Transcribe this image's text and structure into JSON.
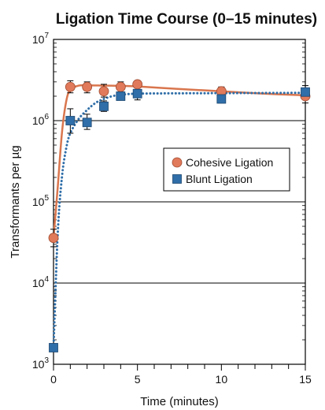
{
  "chart_data": {
    "type": "scatter",
    "title": "Ligation Time Course (0–15 minutes)",
    "xlabel": "Time (minutes)",
    "ylabel": "Transformants per µg",
    "y_scale": "log",
    "xlim": [
      0,
      15
    ],
    "ylim": [
      1000,
      10000000
    ],
    "x_ticks": [
      0,
      5,
      10,
      15
    ],
    "y_ticks": [
      {
        "value": 1000,
        "base": "10",
        "exp": "3"
      },
      {
        "value": 10000,
        "base": "10",
        "exp": "4"
      },
      {
        "value": 100000,
        "base": "10",
        "exp": "5"
      },
      {
        "value": 1000000,
        "base": "10",
        "exp": "6"
      },
      {
        "value": 10000000,
        "base": "10",
        "exp": "7"
      }
    ],
    "grid": "horizontal at decades",
    "legend_position": "center-right",
    "series": [
      {
        "name": "Cohesive Ligation",
        "marker": "circle",
        "line_style": "solid",
        "color": "#e07a5a",
        "line_color": "#d9764e",
        "points": [
          {
            "x": 0,
            "y": 36000,
            "err_low": 28000,
            "err_high": 46000
          },
          {
            "x": 1,
            "y": 2600000,
            "err_low": 2200000,
            "err_high": 3100000
          },
          {
            "x": 2,
            "y": 2600000,
            "err_low": 2200000,
            "err_high": 3000000
          },
          {
            "x": 3,
            "y": 2300000,
            "err_low": 1950000,
            "err_high": 2800000
          },
          {
            "x": 4,
            "y": 2600000,
            "err_low": 2250000,
            "err_high": 3000000
          },
          {
            "x": 5,
            "y": 2800000,
            "err_low": 2700000,
            "err_high": 2900000
          },
          {
            "x": 10,
            "y": 2300000,
            "err_low": 2100000,
            "err_high": 2600000
          },
          {
            "x": 15,
            "y": 2000000,
            "err_low": 1650000,
            "err_high": 2400000
          }
        ],
        "fit": [
          [
            0,
            36000
          ],
          [
            0.25,
            150000
          ],
          [
            0.5,
            700000
          ],
          [
            0.75,
            1700000
          ],
          [
            1,
            2400000
          ],
          [
            1.5,
            2700000
          ],
          [
            2,
            2720000
          ],
          [
            3,
            2700000
          ],
          [
            4,
            2680000
          ],
          [
            5,
            2640000
          ],
          [
            7.5,
            2450000
          ],
          [
            10,
            2300000
          ],
          [
            12.5,
            2150000
          ],
          [
            15,
            2050000
          ]
        ]
      },
      {
        "name": "Blunt Ligation",
        "marker": "square",
        "line_style": "dotted",
        "color": "#2f6ea8",
        "line_color": "#2f6ea8",
        "points": [
          {
            "x": 0,
            "y": 1600,
            "err_low": 1550,
            "err_high": 1650
          },
          {
            "x": 1,
            "y": 1000000,
            "err_low": 700000,
            "err_high": 1400000
          },
          {
            "x": 2,
            "y": 950000,
            "err_low": 780000,
            "err_high": 1200000
          },
          {
            "x": 3,
            "y": 1500000,
            "err_low": 1300000,
            "err_high": 1750000
          },
          {
            "x": 4,
            "y": 2000000,
            "err_low": 1900000,
            "err_high": 2100000
          },
          {
            "x": 5,
            "y": 2150000,
            "err_low": 1800000,
            "err_high": 2600000
          },
          {
            "x": 10,
            "y": 1850000,
            "err_low": 1650000,
            "err_high": 2100000
          },
          {
            "x": 15,
            "y": 2250000,
            "err_low": 1850000,
            "err_high": 2700000
          }
        ],
        "fit": [
          [
            0,
            1600
          ],
          [
            0.25,
            40000
          ],
          [
            0.5,
            200000
          ],
          [
            0.75,
            450000
          ],
          [
            1,
            700000
          ],
          [
            1.5,
            1050000
          ],
          [
            2,
            1350000
          ],
          [
            2.5,
            1650000
          ],
          [
            3,
            1850000
          ],
          [
            3.5,
            2000000
          ],
          [
            4,
            2080000
          ],
          [
            5,
            2150000
          ],
          [
            7.5,
            2170000
          ],
          [
            10,
            2180000
          ],
          [
            12.5,
            2190000
          ],
          [
            15,
            2200000
          ]
        ]
      }
    ]
  }
}
